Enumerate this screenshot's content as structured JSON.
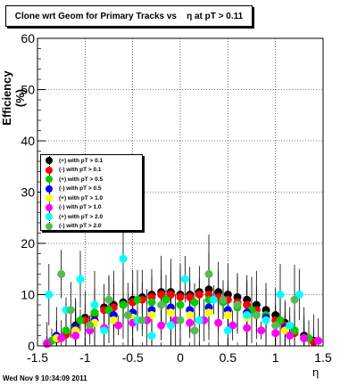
{
  "chart_data": {
    "type": "scatter",
    "title": "Clone wrt Geom for Primary Tracks vs    η at pT > 0.11",
    "xlabel": "η",
    "ylabel": "Efficiency (%)",
    "xlim": [
      -1.5,
      1.5
    ],
    "ylim": [
      0,
      60
    ],
    "x_ticks": [
      "-1.5",
      "-1",
      "-0.5",
      "0",
      "0.5",
      "1",
      "1.5"
    ],
    "y_ticks": [
      "0",
      "10",
      "20",
      "30",
      "40",
      "50",
      "60"
    ],
    "grid": true,
    "legend_position": "middle-left",
    "series": [
      {
        "name": "(+) with pT > 0.1",
        "color": "#000000",
        "x": [
          -1.4,
          -1.3,
          -1.2,
          -1.1,
          -1.0,
          -0.9,
          -0.8,
          -0.7,
          -0.6,
          -0.5,
          -0.4,
          -0.3,
          -0.2,
          -0.1,
          0.0,
          0.1,
          0.2,
          0.3,
          0.4,
          0.5,
          0.6,
          0.7,
          0.8,
          0.9,
          1.0,
          1.1,
          1.2,
          1.3,
          1.4
        ],
        "y": [
          0.5,
          1.5,
          2.5,
          4,
          5.5,
          6.5,
          7.5,
          8,
          8.5,
          9,
          9.5,
          10,
          10.5,
          10.5,
          10,
          10,
          10.5,
          11,
          10.5,
          10,
          9.5,
          9,
          8,
          7,
          6,
          4.5,
          3,
          2,
          1
        ]
      },
      {
        "name": "(-) with pT > 0.1",
        "color": "#ff0000",
        "x": [
          -1.4,
          -1.3,
          -1.2,
          -1.1,
          -1.0,
          -0.9,
          -0.8,
          -0.7,
          -0.6,
          -0.5,
          -0.4,
          -0.3,
          -0.2,
          -0.1,
          0.0,
          0.1,
          0.2,
          0.3,
          0.4,
          0.5,
          0.6,
          0.7,
          0.8,
          0.9,
          1.0,
          1.1,
          1.2,
          1.3,
          1.4
        ],
        "y": [
          0.4,
          1.3,
          2.2,
          3.5,
          5,
          6,
          7,
          7.5,
          8,
          8.5,
          9,
          9.5,
          10,
          10,
          9.5,
          9.5,
          10,
          10,
          9.5,
          9,
          8.5,
          8,
          7,
          6,
          5,
          4,
          2.5,
          1.5,
          0.8
        ]
      },
      {
        "name": "(+) with pT > 0.5",
        "color": "#00cc00",
        "x": [
          -1.35,
          -1.2,
          -1.05,
          -0.9,
          -0.75,
          -0.6,
          -0.45,
          -0.3,
          -0.15,
          0.0,
          0.15,
          0.3,
          0.45,
          0.6,
          0.75,
          0.9,
          1.05,
          1.2,
          1.35
        ],
        "y": [
          1,
          3,
          5,
          6.5,
          7,
          8,
          9,
          8.5,
          9,
          8,
          8.5,
          9,
          8.5,
          7.5,
          7,
          6,
          5,
          3,
          1.5
        ]
      },
      {
        "name": "(-) with pT > 0.5",
        "color": "#0000ff",
        "x": [
          -1.3,
          -1.1,
          -0.9,
          -0.7,
          -0.5,
          -0.3,
          -0.1,
          0.1,
          0.3,
          0.5,
          0.7,
          0.9,
          1.1,
          1.3
        ],
        "y": [
          2,
          3.5,
          5,
          6,
          6.5,
          7,
          7.5,
          7,
          7.5,
          7,
          6.5,
          5.5,
          3.5,
          1.5
        ]
      },
      {
        "name": "(+) with pT > 1.0",
        "color": "#ffff00",
        "x": [
          -1.3,
          -1.1,
          -0.9,
          -0.7,
          -0.5,
          -0.3,
          -0.1,
          0.1,
          0.3,
          0.5,
          0.7,
          0.9,
          1.1,
          1.3
        ],
        "y": [
          1.5,
          3,
          4.5,
          5,
          5.5,
          6,
          6.5,
          6,
          6.5,
          6,
          5.5,
          5,
          3,
          1.5
        ]
      },
      {
        "name": "(-) with pT > 1.0",
        "color": "#ff00ff",
        "x": [
          -1.4,
          -1.25,
          -1.1,
          -0.95,
          -0.8,
          -0.65,
          -0.5,
          -0.35,
          -0.2,
          -0.05,
          0.1,
          0.25,
          0.4,
          0.55,
          0.7,
          0.85,
          1.0,
          1.15,
          1.3,
          1.45
        ],
        "y": [
          0.5,
          1.5,
          2,
          3,
          3.5,
          4,
          4.5,
          5,
          4,
          5,
          4.5,
          5,
          4.5,
          4,
          3.5,
          3,
          2.5,
          2,
          1.5,
          1
        ]
      },
      {
        "name": "(+) with pT > 2.0",
        "color": "#00ffff",
        "x": [
          -1.38,
          -1.2,
          -1.05,
          -0.9,
          -0.8,
          -0.6,
          -0.45,
          -0.3,
          -0.1,
          0.05,
          0.2,
          0.35,
          0.5,
          0.7,
          0.9,
          1.05,
          1.15,
          1.25
        ],
        "y": [
          10,
          7,
          13,
          8,
          3,
          17,
          5,
          2,
          4,
          13,
          5,
          9,
          3,
          6,
          5,
          10,
          4,
          10
        ]
      },
      {
        "name": "(-) with pT > 2.0",
        "color": "#55bb55",
        "x": [
          -1.25,
          -1.15,
          -0.95,
          -0.75,
          -0.55,
          -0.4,
          -0.2,
          0.0,
          0.15,
          0.3,
          0.45,
          0.6,
          0.8,
          1.0,
          1.2
        ],
        "y": [
          14,
          7,
          4,
          9,
          6,
          5,
          8,
          5,
          3,
          14,
          9,
          8,
          6,
          4,
          9
        ]
      }
    ]
  },
  "footer": {
    "timestamp": "Wed Nov  9 10:34:09 2011"
  }
}
